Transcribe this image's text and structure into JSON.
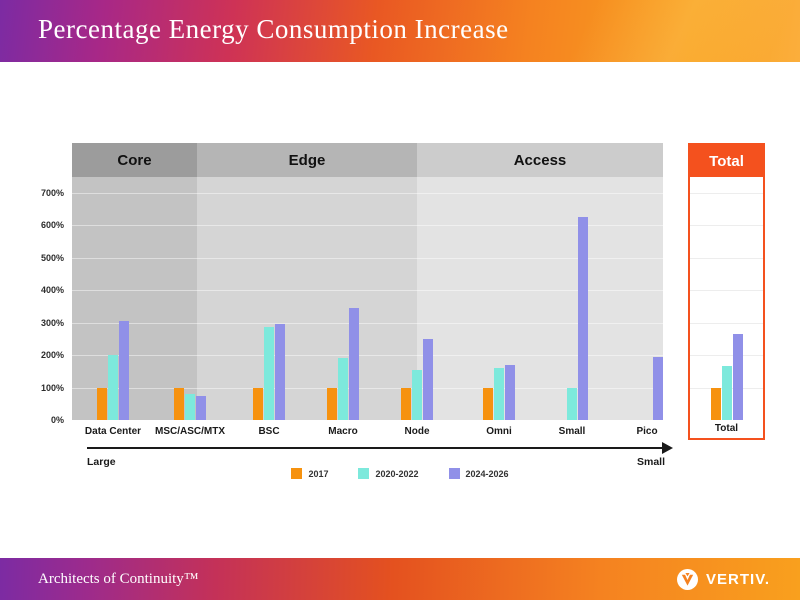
{
  "header": {
    "title": "Percentage Energy Consumption Increase"
  },
  "footer": {
    "tagline": "Architects of Continuity™",
    "brand": "VERTIV."
  },
  "chart_data": {
    "type": "bar",
    "title": "Percentage Energy Consumption Increase",
    "y_axis": {
      "unit": "%",
      "ticks": [
        0,
        100,
        200,
        300,
        400,
        500,
        600,
        700
      ],
      "max": 745,
      "grid": true
    },
    "sections": [
      {
        "label": "Core",
        "categories": [
          "Data Center",
          "MSC/ASC/MTX"
        ],
        "header_color": "#9c9c9c",
        "band_color": "#c3c3c3"
      },
      {
        "label": "Edge",
        "categories": [
          "BSC",
          "Macro",
          "Node"
        ],
        "header_color": "#b5b5b5",
        "band_color": "#d5d5d5"
      },
      {
        "label": "Access",
        "categories": [
          "Omni",
          "Small",
          "Pico"
        ],
        "header_color": "#cccccc",
        "band_color": "#e3e3e3"
      }
    ],
    "categories": [
      "Data Center",
      "MSC/ASC/MTX",
      "BSC",
      "Macro",
      "Node",
      "Omni",
      "Small",
      "Pico"
    ],
    "series": [
      {
        "name": "2017",
        "color": "#f6920f",
        "values": [
          100,
          100,
          100,
          100,
          100,
          100,
          null,
          null
        ],
        "total": 100
      },
      {
        "name": "2020-2022",
        "color": "#7de9dc",
        "values": [
          200,
          80,
          285,
          190,
          155,
          160,
          100,
          null
        ],
        "total": 165
      },
      {
        "name": "2024-2026",
        "color": "#9090e8",
        "values": [
          305,
          75,
          295,
          345,
          250,
          170,
          625,
          195
        ],
        "total": 265
      }
    ],
    "total": {
      "header": "Total",
      "label": "Total",
      "accent_color": "#f4511e"
    },
    "axis_arrow": {
      "left_label": "Large",
      "right_label": "Small"
    },
    "legend_position": "bottom-center"
  }
}
